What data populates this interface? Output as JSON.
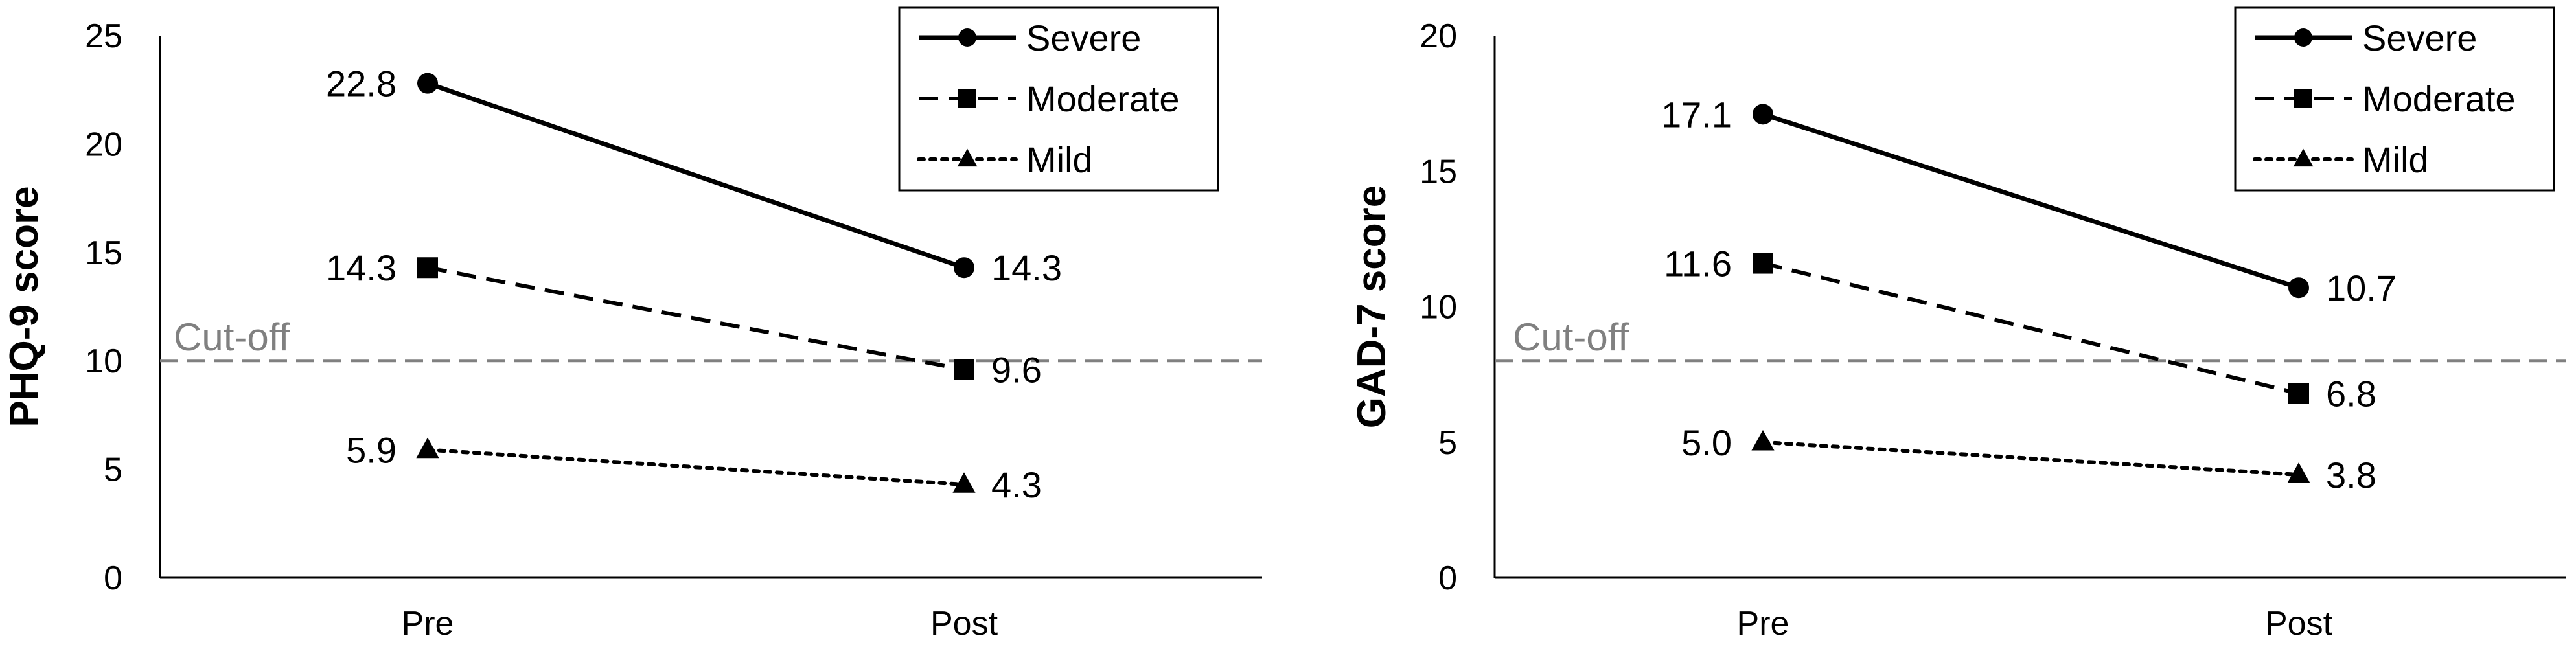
{
  "colors": {
    "series": "#000000",
    "cutoff": "#808080",
    "axis": "#000000",
    "background": "#ffffff"
  },
  "chart_data": [
    {
      "type": "line",
      "categories": [
        "Pre",
        "Post"
      ],
      "ylabel": "PHQ-9 score",
      "xlabel": "",
      "ylim": [
        0,
        25
      ],
      "yticks": [
        0,
        5,
        10,
        15,
        20,
        25
      ],
      "grid": false,
      "legend_position": "top-right",
      "series": [
        {
          "name": "Severe",
          "values": [
            22.8,
            14.3
          ],
          "value_labels": [
            "22.8",
            "14.3"
          ],
          "line_style": "solid",
          "marker": "circle"
        },
        {
          "name": "Moderate",
          "values": [
            14.3,
            9.6
          ],
          "value_labels": [
            "14.3",
            "9.6"
          ],
          "line_style": "dashed",
          "marker": "square"
        },
        {
          "name": "Mild",
          "values": [
            5.9,
            4.3
          ],
          "value_labels": [
            "5.9",
            "4.3"
          ],
          "line_style": "dotted",
          "marker": "triangle"
        }
      ],
      "reference_line": {
        "value": 10,
        "label": "Cut-off",
        "style": "dashed"
      }
    },
    {
      "type": "line",
      "categories": [
        "Pre",
        "Post"
      ],
      "ylabel": "GAD-7 score",
      "xlabel": "",
      "ylim": [
        0,
        20
      ],
      "yticks": [
        0,
        5,
        10,
        15,
        20
      ],
      "grid": false,
      "legend_position": "top-right",
      "series": [
        {
          "name": "Severe",
          "values": [
            17.1,
            10.7
          ],
          "value_labels": [
            "17.1",
            "10.7"
          ],
          "line_style": "solid",
          "marker": "circle"
        },
        {
          "name": "Moderate",
          "values": [
            11.6,
            6.8
          ],
          "value_labels": [
            "11.6",
            "6.8"
          ],
          "line_style": "dashed",
          "marker": "square"
        },
        {
          "name": "Mild",
          "values": [
            5.0,
            3.8
          ],
          "value_labels": [
            "5.0",
            "3.8"
          ],
          "line_style": "dotted",
          "marker": "triangle"
        }
      ],
      "reference_line": {
        "value": 8,
        "label": "Cut-off",
        "style": "dashed"
      }
    }
  ]
}
